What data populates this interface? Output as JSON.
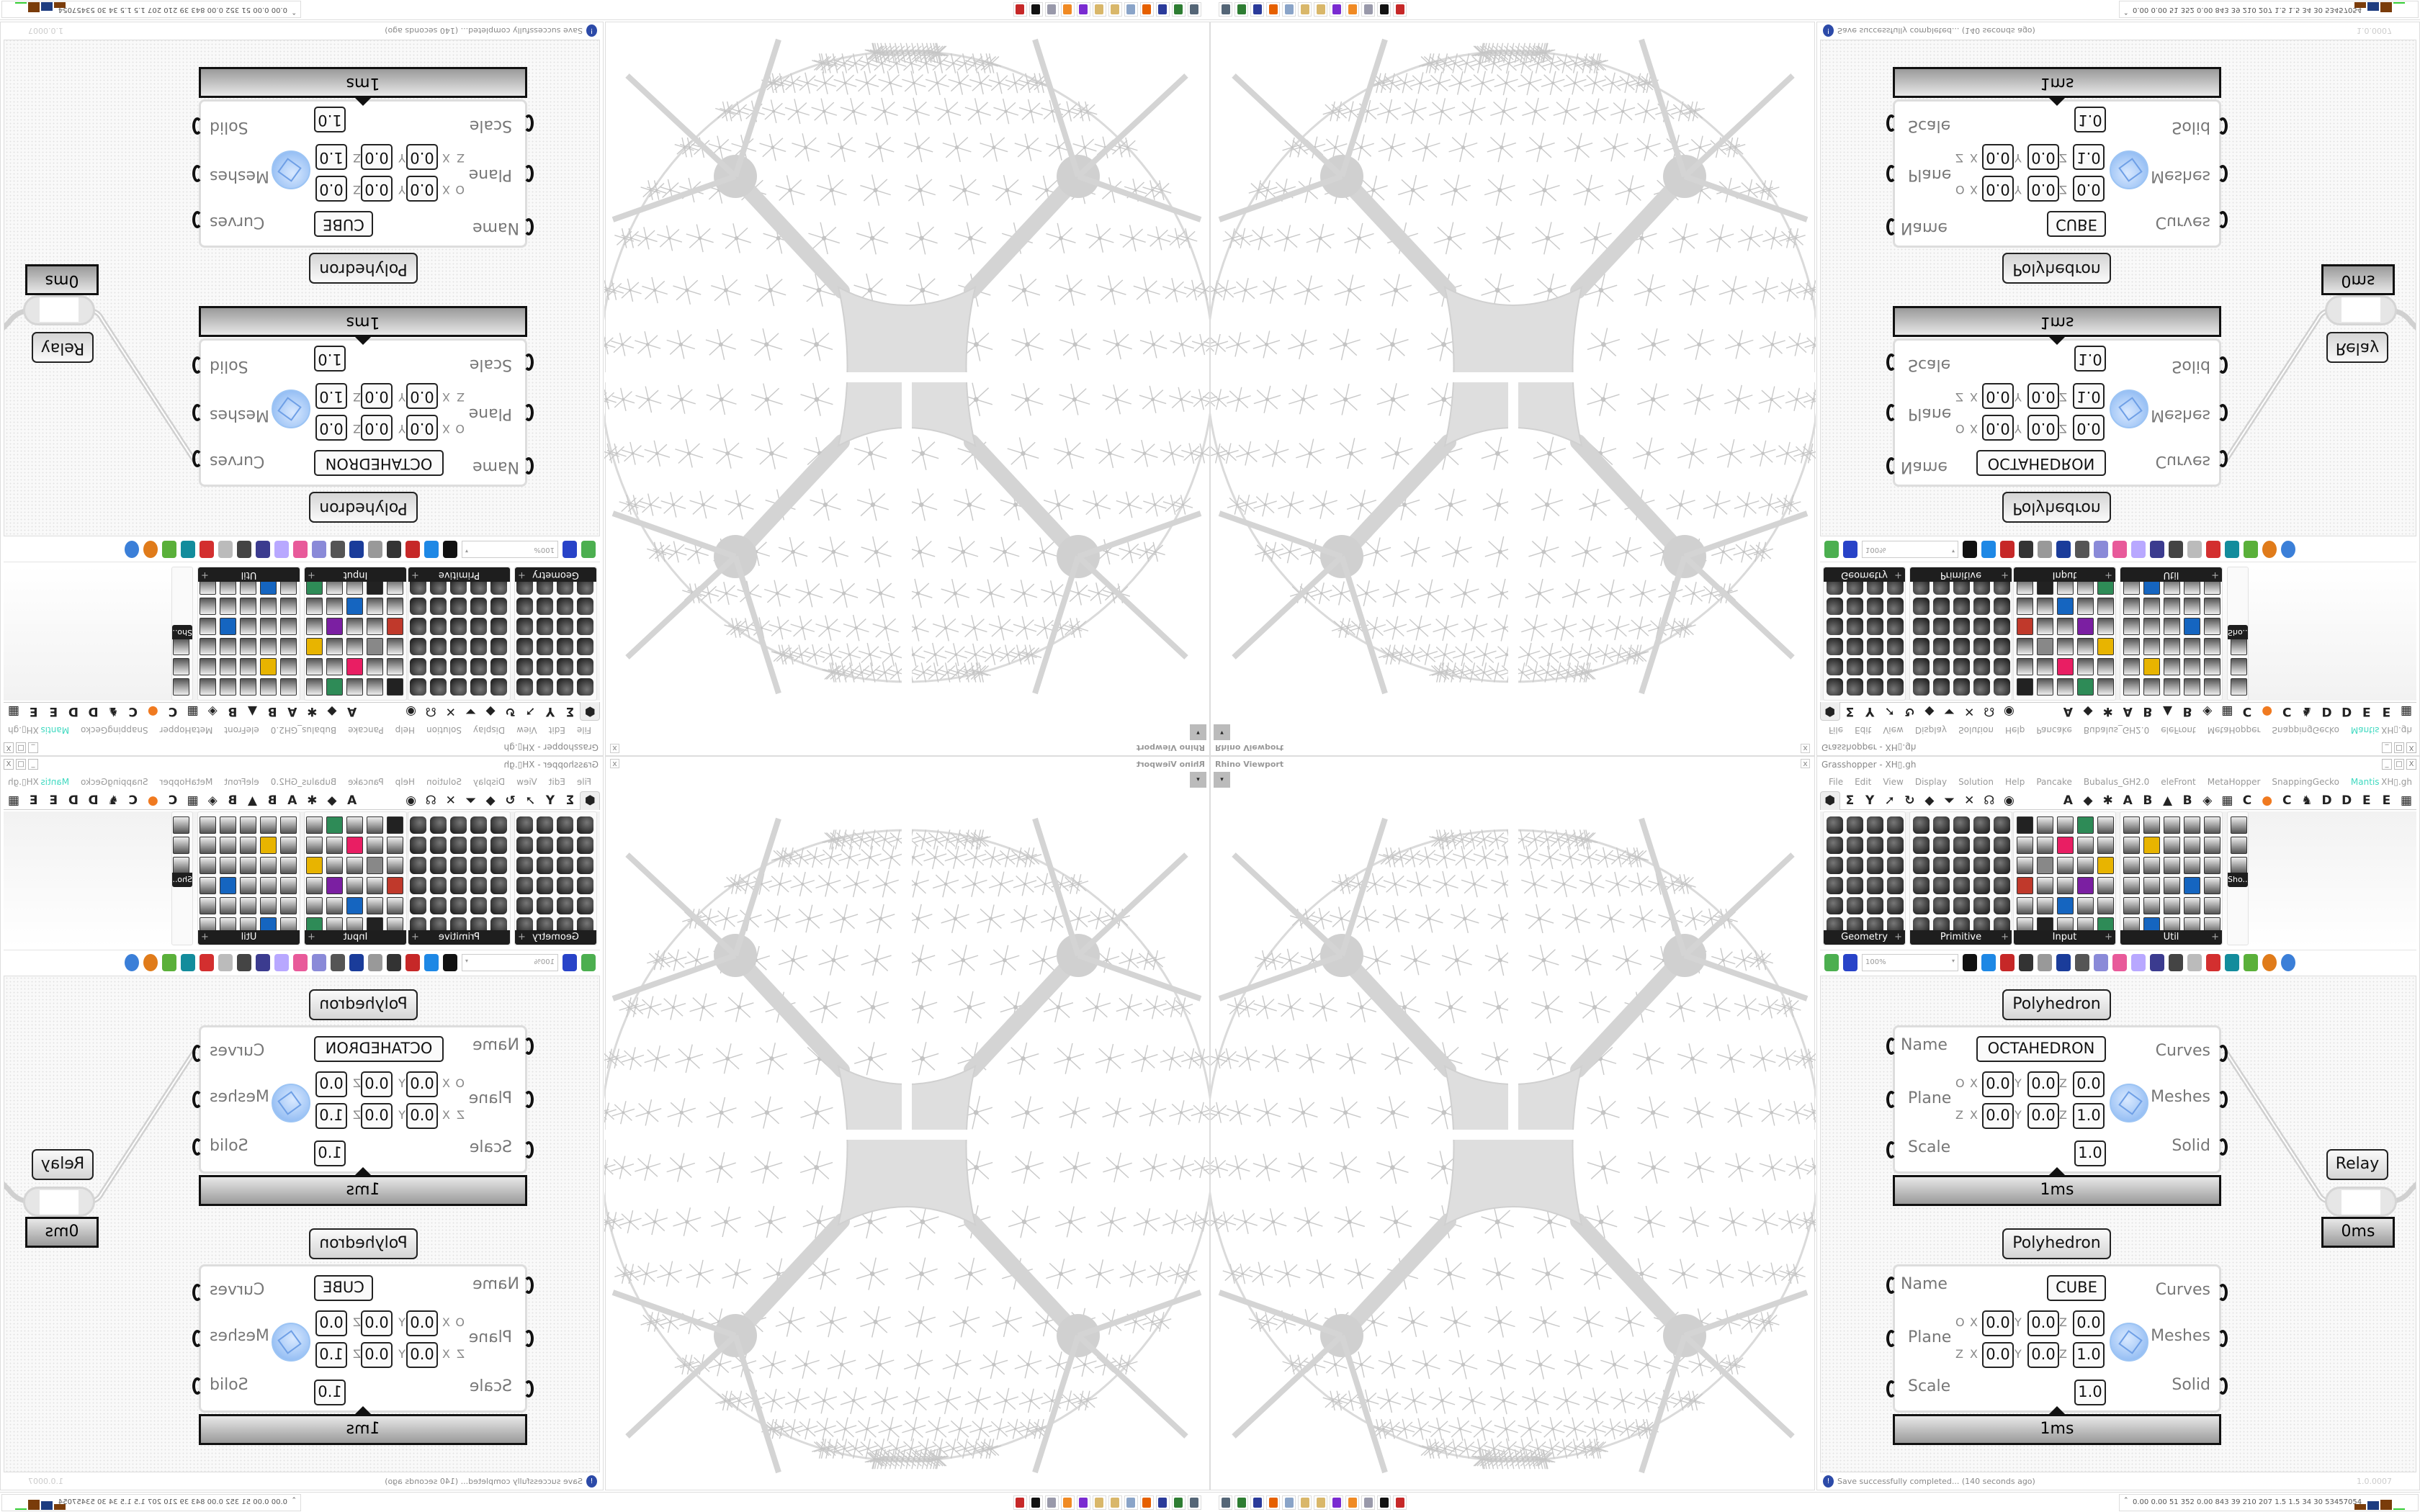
{
  "viewport": {
    "title": "Rhino Viewport",
    "close": "x",
    "dropdown": "▾"
  },
  "grasshopper": {
    "title": "Grasshopper - XH▯.gh",
    "window_buttons": [
      "_",
      "□",
      "X"
    ],
    "menu": [
      "File",
      "Edit",
      "View",
      "Display",
      "Solution",
      "Help",
      "Pancake",
      "Bubalus_GH2.0",
      "eleFront",
      "MetaHopper",
      "SnappingGecko",
      "Mantis"
    ],
    "menu_highlight_color": "#3fd9c0",
    "menu_right": "XH▯.gh",
    "tabs_left": [
      "⬢",
      "Σ",
      "Y",
      "➚",
      "↻",
      "◆",
      "⏷",
      "✕",
      "☊",
      "◉"
    ],
    "tabs_right": [
      "A",
      "◆",
      "✱",
      "A",
      "B",
      "▲",
      "B",
      "◈",
      "▦",
      "C",
      "●",
      "C",
      "♞",
      "D",
      "D",
      "E",
      "E",
      "▦"
    ],
    "palette_groups": [
      {
        "label": "Geometry",
        "expand": "+"
      },
      {
        "label": "Primitive",
        "expand": "+"
      },
      {
        "label": "Input",
        "expand": "+"
      },
      {
        "label": "Util",
        "expand": "+"
      },
      {
        "label": "Sho..."
      }
    ],
    "toolbar": {
      "zoom": "100%",
      "icons": [
        "new-file",
        "save",
        "zoom-extents",
        "preview-eye",
        "sketch-pen",
        "bake",
        "email",
        "gha",
        "panel",
        "search",
        "unknown-box",
        "lightbulb",
        "wires",
        "shaded",
        "wireframe",
        "red-gem",
        "teal",
        "green",
        "orange-sphere",
        "blue-sphere"
      ]
    },
    "nodes": [
      {
        "title": "Polyhedron",
        "name_label": "Name",
        "name_value": "OCTAHEDRON",
        "plane_label": "Plane",
        "scale_label": "Scale",
        "origin_axis": "O",
        "z_axis": "Z",
        "origin": [
          "0.0",
          "0.0",
          "0.0"
        ],
        "normal": [
          "0.0",
          "0.0",
          "1.0"
        ],
        "scale": "1.0",
        "outputs": [
          "Curves",
          "Meshes",
          "Solid"
        ],
        "time": "1ms"
      },
      {
        "title": "Polyhedron",
        "name_label": "Name",
        "name_value": "CUBE",
        "plane_label": "Plane",
        "scale_label": "Scale",
        "origin_axis": "O",
        "z_axis": "Z",
        "origin": [
          "0.0",
          "0.0",
          "0.0"
        ],
        "normal": [
          "0.0",
          "0.0",
          "1.0"
        ],
        "scale": "1.0",
        "outputs": [
          "Curves",
          "Meshes",
          "Solid"
        ],
        "time": "1ms"
      }
    ],
    "coord_labels": [
      "X",
      "Y",
      "Z"
    ],
    "relay": {
      "title": "Relay",
      "time": "0ms"
    },
    "status": {
      "message": "Save successfully completed... (140 seconds ago)",
      "version": "1.0.0007"
    }
  },
  "taskbar": {
    "icons": [
      {
        "name": "remote-desktop",
        "color": "#556677"
      },
      {
        "name": "terminal-app",
        "color": "#2e7d32"
      },
      {
        "name": "floppy-64",
        "color": "#2a3a9a"
      },
      {
        "name": "firefox",
        "color": "#e66000"
      },
      {
        "name": "calculator",
        "color": "#8aa4c8"
      },
      {
        "name": "paint",
        "color": "#d9b76a"
      },
      {
        "name": "paint-2",
        "color": "#d9b76a"
      },
      {
        "name": "purple-app",
        "color": "#7a2bd1"
      },
      {
        "name": "blender",
        "color": "#f08a24"
      },
      {
        "name": "scroll-doc",
        "color": "#99a"
      },
      {
        "name": "inkscape",
        "color": "#111111"
      },
      {
        "name": "red-app",
        "color": "#c62828"
      }
    ],
    "stats": "0.00 0.00  51   352  0.00  843   39   210  207   1.5   1.5   34   30  53457054"
  }
}
